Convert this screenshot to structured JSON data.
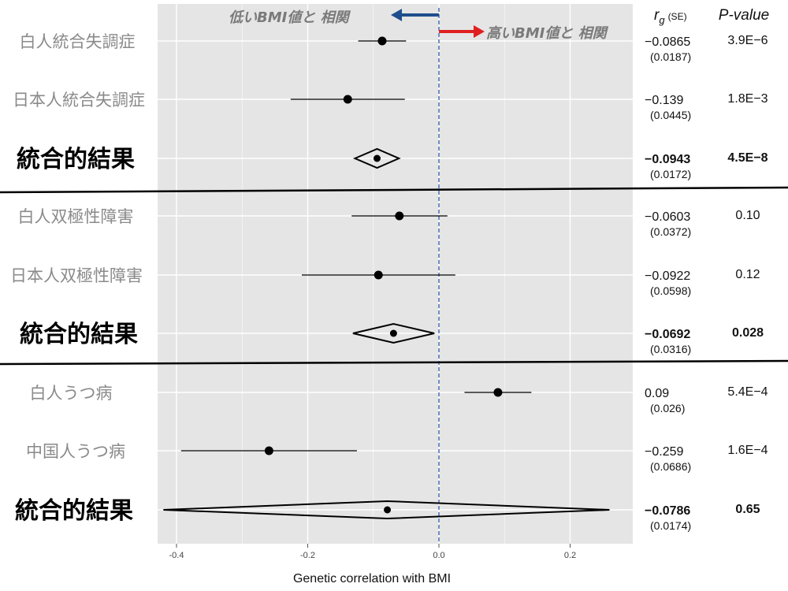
{
  "chart_data": {
    "type": "forest",
    "xlabel": "Genetic correlation with BMI",
    "xlim": [
      -0.42,
      0.3
    ],
    "x_ticks": [
      "-0.4",
      "-0.2",
      "0.0",
      "0.2"
    ],
    "tick_values": [
      -0.4,
      -0.2,
      0.0,
      0.2
    ],
    "reference_line": 0.0,
    "headers": {
      "rg": "r",
      "rg_sub": "g",
      "rg_se": "(SE)",
      "p": "P-value"
    },
    "annotations": {
      "lower": "低いBMI値と 相関",
      "higher": "高いBMI値と 相関"
    },
    "rows": [
      {
        "label": "白人統合失調症",
        "kind": "study",
        "estimate": -0.0865,
        "ci": [
          -0.123,
          -0.05
        ],
        "rg_text": "−0.0865",
        "se_text": "(0.0187)",
        "p_text": "3.9E−6"
      },
      {
        "label": "日本人統合失調症",
        "kind": "study",
        "estimate": -0.139,
        "ci": [
          -0.226,
          -0.052
        ],
        "rg_text": "−0.139",
        "se_text": "(0.0445)",
        "p_text": "1.8E−3"
      },
      {
        "label": "統合的結果",
        "kind": "pooled",
        "estimate": -0.0943,
        "ci": [
          -0.128,
          -0.061
        ],
        "rg_text": "−0.0943",
        "se_text": "(0.0172)",
        "p_text": "4.5E−8"
      },
      {
        "label": "白人双極性障害",
        "kind": "study",
        "estimate": -0.0603,
        "ci": [
          -0.133,
          0.013
        ],
        "rg_text": "−0.0603",
        "se_text": "(0.0372)",
        "p_text": "0.10"
      },
      {
        "label": "日本人双極性障害",
        "kind": "study",
        "estimate": -0.0922,
        "ci": [
          -0.209,
          0.025
        ],
        "rg_text": "−0.0922",
        "se_text": "(0.0598)",
        "p_text": "0.12"
      },
      {
        "label": "統合的結果",
        "kind": "pooled",
        "estimate": -0.0692,
        "ci": [
          -0.131,
          -0.007
        ],
        "rg_text": "−0.0692",
        "se_text": "(0.0316)",
        "p_text": "0.028"
      },
      {
        "label": "白人うつ病",
        "kind": "study",
        "estimate": 0.09,
        "ci": [
          0.039,
          0.141
        ],
        "rg_text": "0.09",
        "se_text": "(0.026)",
        "p_text": "5.4E−4"
      },
      {
        "label": "中国人うつ病",
        "kind": "study",
        "estimate": -0.259,
        "ci": [
          -0.393,
          -0.125
        ],
        "rg_text": "−0.259",
        "se_text": "(0.0686)",
        "p_text": "1.6E−4"
      },
      {
        "label": "統合的結果",
        "kind": "pooled",
        "estimate": -0.0786,
        "ci": [
          -0.42,
          0.26
        ],
        "rg_text": "−0.0786",
        "se_text": "(0.0174)",
        "p_text": "0.65"
      }
    ],
    "colors": {
      "panel": "#e5e5e5",
      "grid": "#ffffff",
      "reference": "#4a6fb5",
      "arrow_lower": "#1f4e8c",
      "arrow_higher": "#e02020"
    }
  }
}
